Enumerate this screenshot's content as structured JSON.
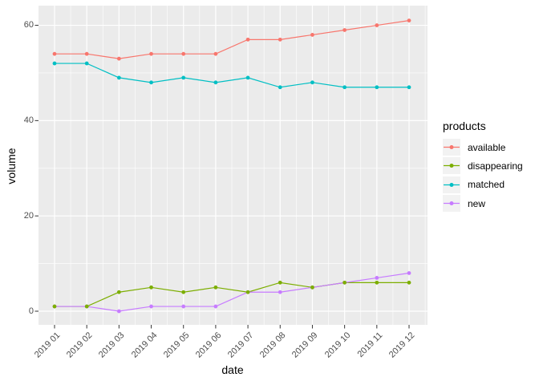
{
  "figure": {
    "background": "#ffffff",
    "panel_background": "#ebebeb",
    "grid_color": "#ffffff",
    "axis_text_color": "#4d4d4d",
    "tick_mark_color": "#333333"
  },
  "chart_data": {
    "type": "line",
    "title": "",
    "xlabel": "date",
    "ylabel": "volume",
    "x_tick_labels": [
      "2019 01",
      "2019 02",
      "2019 03",
      "2019 04",
      "2019 05",
      "2019 06",
      "2019 07",
      "2019 08",
      "2019 09",
      "2019 10",
      "2019 11",
      "2019 12"
    ],
    "y_tick_labels": [
      "0",
      "20",
      "40",
      "60"
    ],
    "y_ticks": [
      0,
      20,
      40,
      60
    ],
    "y_minor_ticks": [
      10,
      30,
      50
    ],
    "ylim": [
      -3,
      64
    ],
    "grid": "major-and-minor",
    "legend_title": "products",
    "legend_position": "right",
    "categories": [
      "2019 01",
      "2019 02",
      "2019 03",
      "2019 04",
      "2019 05",
      "2019 06",
      "2019 07",
      "2019 08",
      "2019 09",
      "2019 10",
      "2019 11",
      "2019 12"
    ],
    "series": [
      {
        "name": "available",
        "color": "#F8766D",
        "values": [
          54,
          54,
          53,
          54,
          54,
          54,
          57,
          57,
          58,
          59,
          60,
          61
        ]
      },
      {
        "name": "disappearing",
        "color": "#7CAE00",
        "values": [
          1,
          1,
          4,
          5,
          4,
          5,
          4,
          6,
          5,
          6,
          6,
          6
        ]
      },
      {
        "name": "matched",
        "color": "#00BFC4",
        "values": [
          52,
          52,
          49,
          48,
          49,
          48,
          49,
          47,
          48,
          47,
          47,
          47
        ]
      },
      {
        "name": "new",
        "color": "#C77CFF",
        "values": [
          1,
          1,
          0,
          1,
          1,
          1,
          4,
          4,
          5,
          6,
          7,
          8
        ]
      }
    ]
  }
}
